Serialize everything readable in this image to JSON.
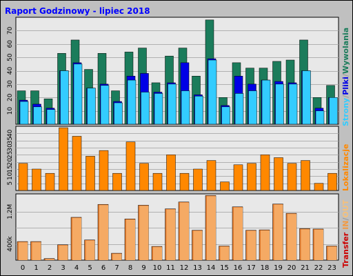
{
  "title": "Raport Godzinowy -  lipiec 2018",
  "colors": {
    "background": "#c0c0c0",
    "plot_background": "#e8e8e8",
    "title_text": "#0000ff",
    "tick_text": "#000000",
    "wyswietlenia": "#1b7c5b",
    "pliki": "#0000e6",
    "strony": "#33ccff",
    "lokalizacje": "#ff8800",
    "transfer_in": "#e07a2e",
    "transfer_out": "#f5aa64",
    "legend_transfer": "#cc0000",
    "legend_in": "#f29a43",
    "legend_slash": "#999999",
    "legend_out": "#f5c07a"
  },
  "legend": {
    "strony": "Strony",
    "pliki": "Pliki",
    "wyswietlenia": "Wywolania",
    "slash": "/",
    "lokalizacje": "Lokalizacje",
    "transfer": "Transfer",
    "in": "IN",
    "out": "OUT"
  },
  "chart_data": [
    {
      "type": "bar",
      "panel": "wywolania",
      "categories": [
        "0",
        "1",
        "2",
        "3",
        "4",
        "5",
        "6",
        "7",
        "8",
        "9",
        "10",
        "11",
        "12",
        "13",
        "14",
        "15",
        "16",
        "17",
        "18",
        "19",
        "20",
        "21",
        "22",
        "23"
      ],
      "ylim": [
        0,
        80
      ],
      "yticks": [
        10,
        20,
        30,
        40,
        50,
        60,
        70
      ],
      "grid": true,
      "series": [
        {
          "name": "Wywolania",
          "values": [
            25,
            25,
            19,
            53,
            63,
            41,
            53,
            25,
            54,
            57,
            31,
            51,
            57,
            36,
            78,
            20,
            46,
            42,
            42,
            47,
            48,
            63,
            20,
            29
          ]
        },
        {
          "name": "Pliki",
          "values": [
            18,
            15,
            12,
            40,
            46,
            27,
            30,
            17,
            36,
            38,
            24,
            31,
            46,
            22,
            49,
            14,
            36,
            30,
            33,
            32,
            31,
            40,
            12,
            20
          ]
        },
        {
          "name": "Strony",
          "values": [
            17,
            13,
            11,
            40,
            45,
            27,
            29,
            16,
            33,
            24,
            23,
            30,
            25,
            21,
            48,
            13,
            23,
            25,
            33,
            30,
            30,
            40,
            10,
            20
          ]
        }
      ]
    },
    {
      "type": "bar",
      "panel": "lokalizacje",
      "categories": [
        "0",
        "1",
        "2",
        "3",
        "4",
        "5",
        "6",
        "7",
        "8",
        "9",
        "10",
        "11",
        "12",
        "13",
        "14",
        "15",
        "16",
        "17",
        "18",
        "19",
        "20",
        "21",
        "22",
        "23"
      ],
      "ylim": [
        0,
        45
      ],
      "yticks": [
        5,
        10,
        15,
        20,
        25,
        30,
        35,
        40
      ],
      "grid": true,
      "series": [
        {
          "name": "Lokalizacje",
          "values": [
            19,
            15,
            12,
            44,
            38,
            24,
            28,
            12,
            34,
            19,
            12,
            25,
            12,
            15,
            21,
            6,
            18,
            19,
            25,
            23,
            19,
            21,
            5,
            12
          ]
        }
      ]
    },
    {
      "type": "bar",
      "panel": "transfer",
      "categories": [
        "0",
        "1",
        "2",
        "3",
        "4",
        "5",
        "6",
        "7",
        "8",
        "9",
        "10",
        "11",
        "12",
        "13",
        "14",
        "15",
        "16",
        "17",
        "18",
        "19",
        "20",
        "21",
        "22",
        "23"
      ],
      "ylim": [
        0,
        1640000
      ],
      "yticks": [
        400000,
        800000,
        1200000
      ],
      "ytick_labels": [
        "400k",
        "",
        "1.2M"
      ],
      "grid": true,
      "series": [
        {
          "name": "IN",
          "values": [
            460000,
            460000,
            40000,
            380000,
            1060000,
            500000,
            1380000,
            170000,
            1020000,
            1360000,
            340000,
            1270000,
            1440000,
            740000,
            1600000,
            350000,
            1320000,
            740000,
            750000,
            1390000,
            1160000,
            780000,
            770000,
            350000
          ]
        },
        {
          "name": "OUT",
          "values": [
            460000,
            460000,
            40000,
            380000,
            1060000,
            500000,
            1380000,
            170000,
            1020000,
            1360000,
            340000,
            1270000,
            1440000,
            740000,
            1600000,
            350000,
            1320000,
            740000,
            750000,
            1390000,
            1160000,
            780000,
            770000,
            350000
          ]
        }
      ]
    }
  ]
}
